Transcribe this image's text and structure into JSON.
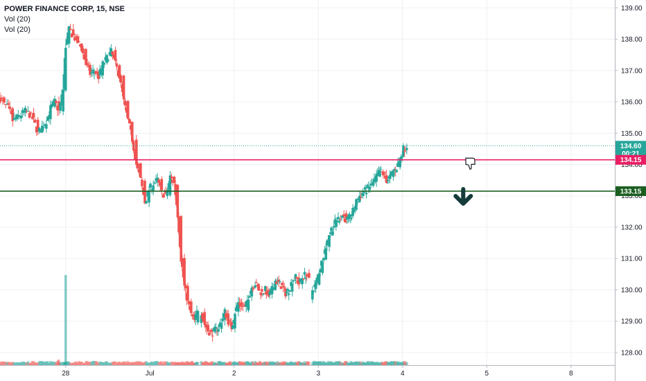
{
  "legend": {
    "title": "POWER FINANCE CORP, 15, NSE",
    "indicators": [
      "Vol (20)",
      "Vol (20)"
    ]
  },
  "colors": {
    "up": "#26a69a",
    "down": "#ef5350",
    "grid": "#eef0f3",
    "axis": "#b2b5be",
    "last_price": "#26a69a",
    "pink_line": "#e91e63",
    "green_line": "#1b5e20",
    "arrow": "#163b3b"
  },
  "chart_data": {
    "type": "candlestick",
    "symbol": "POWER FINANCE CORP, 15, NSE",
    "y_axis_ticks": [
      "128.00",
      "129.00",
      "130.00",
      "131.00",
      "132.00",
      "133.00",
      "134.00",
      "135.00",
      "136.00",
      "137.00",
      "138.00",
      "139.00"
    ],
    "ylim": [
      127.6,
      139.25
    ],
    "x_axis_ticks": [
      {
        "label": "28",
        "pos": 0.3
      },
      {
        "label": "Jul",
        "pos": 10.3
      },
      {
        "label": "2",
        "pos": 20.3
      },
      {
        "label": "3",
        "pos": 30.3
      },
      {
        "label": "4",
        "pos": 40.3
      },
      {
        "label": "5",
        "pos": 50.3
      },
      {
        "label": "8",
        "pos": 60.3
      }
    ],
    "xlim": [
      -7.5,
      65.5
    ],
    "sessions": [
      {
        "anchor": "start",
        "points": [
          [
            -7.5,
            136.1
          ],
          [
            -7.0,
            135.9
          ],
          [
            -6.5,
            135.8
          ],
          [
            -6.0,
            135.4
          ],
          [
            -5.5,
            135.5
          ],
          [
            -5.0,
            135.6
          ],
          [
            -4.5,
            135.7
          ],
          [
            -4.0,
            135.6
          ],
          [
            -3.5,
            135.4
          ],
          [
            -3.0,
            135.0
          ],
          [
            -2.5,
            135.2
          ],
          [
            -2.0,
            135.4
          ],
          [
            -1.5,
            135.8
          ],
          [
            -1.0,
            136.0
          ],
          [
            -0.5,
            135.7
          ],
          [
            0.0,
            136.4
          ],
          [
            0.3,
            137.8
          ],
          [
            0.7,
            138.3
          ],
          [
            1.2,
            138.1
          ],
          [
            1.7,
            137.9
          ],
          [
            2.2,
            137.7
          ],
          [
            2.7,
            137.2
          ],
          [
            3.2,
            136.9
          ],
          [
            3.7,
            137.0
          ],
          [
            4.2,
            136.8
          ],
          [
            4.7,
            137.2
          ],
          [
            5.2,
            137.4
          ],
          [
            5.7,
            137.6
          ],
          [
            6.2,
            137.2
          ],
          [
            6.7,
            136.8
          ],
          [
            7.2,
            136.0
          ],
          [
            7.7,
            135.4
          ],
          [
            8.2,
            134.8
          ],
          [
            8.7,
            134.0
          ],
          [
            9.2,
            133.5
          ],
          [
            9.7,
            132.8
          ],
          [
            10.2,
            133.2
          ],
          [
            10.7,
            133.4
          ],
          [
            11.2,
            133.5
          ],
          [
            11.7,
            133.1
          ],
          [
            12.2,
            133.0
          ],
          [
            12.7,
            133.6
          ],
          [
            13.2,
            133.4
          ],
          [
            13.6,
            132.4
          ],
          [
            14.0,
            131.0
          ],
          [
            14.4,
            130.1
          ],
          [
            14.8,
            129.6
          ],
          [
            15.2,
            129.2
          ],
          [
            15.6,
            129.0
          ],
          [
            16.0,
            129.4
          ]
        ]
      },
      {
        "points": [
          [
            16.4,
            129.3
          ],
          [
            16.8,
            128.9
          ],
          [
            17.2,
            128.7
          ],
          [
            17.6,
            128.6
          ],
          [
            18.0,
            128.7
          ],
          [
            18.4,
            128.8
          ],
          [
            18.8,
            129.0
          ],
          [
            19.2,
            129.3
          ],
          [
            19.6,
            129.0
          ],
          [
            20.0,
            128.8
          ],
          [
            20.4,
            129.3
          ],
          [
            20.8,
            129.6
          ],
          [
            21.2,
            129.5
          ],
          [
            21.6,
            129.4
          ],
          [
            22.0,
            129.8
          ],
          [
            22.4,
            130.1
          ],
          [
            22.8,
            130.2
          ],
          [
            23.2,
            130.0
          ],
          [
            23.6,
            129.9
          ],
          [
            24.0,
            130.0
          ],
          [
            24.4,
            129.8
          ],
          [
            24.8,
            130.0
          ],
          [
            25.2,
            130.3
          ],
          [
            25.6,
            130.2
          ],
          [
            26.0,
            130.1
          ],
          [
            26.4,
            129.9
          ],
          [
            26.8,
            130.0
          ],
          [
            27.2,
            130.3
          ],
          [
            27.6,
            130.4
          ],
          [
            28.0,
            130.2
          ],
          [
            28.4,
            130.4
          ],
          [
            28.8,
            130.5
          ],
          [
            29.2,
            130.3
          ]
        ]
      },
      {
        "points": [
          [
            29.6,
            130.0
          ],
          [
            30.0,
            130.2
          ],
          [
            30.4,
            130.6
          ],
          [
            30.8,
            131.0
          ],
          [
            31.2,
            131.4
          ],
          [
            31.6,
            131.8
          ],
          [
            32.0,
            132.0
          ],
          [
            32.4,
            132.2
          ],
          [
            32.8,
            132.3
          ],
          [
            33.2,
            132.4
          ],
          [
            33.6,
            132.2
          ],
          [
            34.0,
            132.3
          ],
          [
            34.4,
            132.5
          ],
          [
            34.8,
            132.8
          ],
          [
            35.2,
            133.0
          ],
          [
            35.6,
            133.1
          ],
          [
            36.0,
            133.2
          ],
          [
            36.4,
            133.3
          ],
          [
            36.8,
            133.4
          ],
          [
            37.2,
            133.6
          ],
          [
            37.6,
            133.8
          ],
          [
            38.0,
            133.7
          ],
          [
            38.4,
            133.5
          ],
          [
            38.8,
            133.6
          ],
          [
            39.2,
            133.8
          ],
          [
            39.6,
            133.9
          ],
          [
            40.0,
            134.2
          ],
          [
            40.4,
            134.5
          ],
          [
            40.8,
            134.6
          ]
        ]
      }
    ],
    "volume": {
      "spike": {
        "x": 0.3,
        "height_ratio": 1.0
      },
      "small_bar_height_ratio": 0.04
    },
    "price_labels": [
      {
        "value": "134.60",
        "price": 134.6,
        "color": "#26a69a",
        "style": "dotted"
      },
      {
        "value": "00:21",
        "price": 134.35,
        "color": "#26a69a",
        "style": "none"
      },
      {
        "value": "134.15",
        "price": 134.15,
        "color": "#e91e63",
        "style": "solid"
      },
      {
        "value": "133.15",
        "price": 133.15,
        "color": "#1b5e20",
        "style": "solid"
      }
    ],
    "annotations": [
      {
        "type": "arrow-down",
        "x": 47.5,
        "price": 132.95
      },
      {
        "type": "thumbs-down",
        "x": 48.3,
        "price": 134.05
      }
    ]
  }
}
